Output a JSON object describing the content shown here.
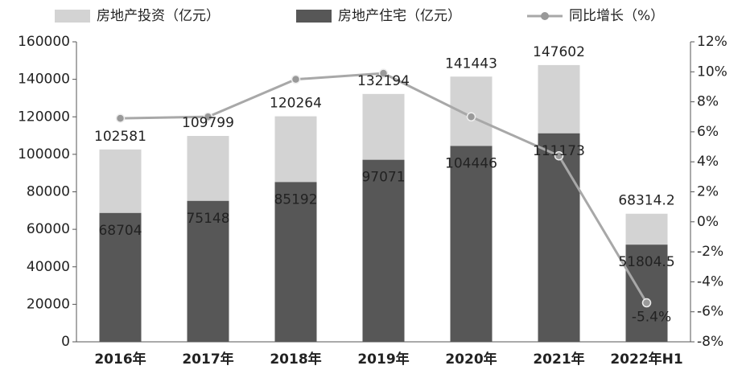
{
  "chart_data": {
    "type": "bar",
    "categories": [
      "2016年",
      "2017年",
      "2018年",
      "2019年",
      "2020年",
      "2021年",
      "2022年H1"
    ],
    "series": [
      {
        "name": "房地产投资（亿元）",
        "type": "bar",
        "color": "#d3d3d3",
        "values": [
          102581,
          109799,
          120264,
          132194,
          141443,
          147602,
          68314.2
        ]
      },
      {
        "name": "房地产住宅（亿元）",
        "type": "bar",
        "color": "#575757",
        "values": [
          68704,
          75148,
          85192,
          97071,
          104446,
          111173,
          51804.5
        ]
      },
      {
        "name": "同比增长（%）",
        "type": "line",
        "axis": "y2",
        "color": "#a8a8a8",
        "values": [
          6.9,
          7.0,
          9.5,
          9.9,
          7.0,
          4.4,
          -5.4
        ],
        "value_labels": [
          null,
          null,
          null,
          null,
          null,
          null,
          "-5.4%"
        ]
      }
    ],
    "ylim": [
      0,
      160000
    ],
    "yticks": [
      0,
      20000,
      40000,
      60000,
      80000,
      100000,
      120000,
      140000,
      160000
    ],
    "y2lim": [
      -8,
      12
    ],
    "y2ticks": [
      {
        "value": -8,
        "label": "-8%"
      },
      {
        "value": -6,
        "label": "-6%"
      },
      {
        "value": -4,
        "label": "-4%"
      },
      {
        "value": -2,
        "label": "-2%"
      },
      {
        "value": 0,
        "label": "0%"
      },
      {
        "value": 2,
        "label": "2%"
      },
      {
        "value": 4,
        "label": "4%"
      },
      {
        "value": 6,
        "label": "6%"
      },
      {
        "value": 8,
        "label": "8%"
      },
      {
        "value": 10,
        "label": "10%"
      },
      {
        "value": 12,
        "label": "12%"
      }
    ],
    "legend": "top"
  }
}
